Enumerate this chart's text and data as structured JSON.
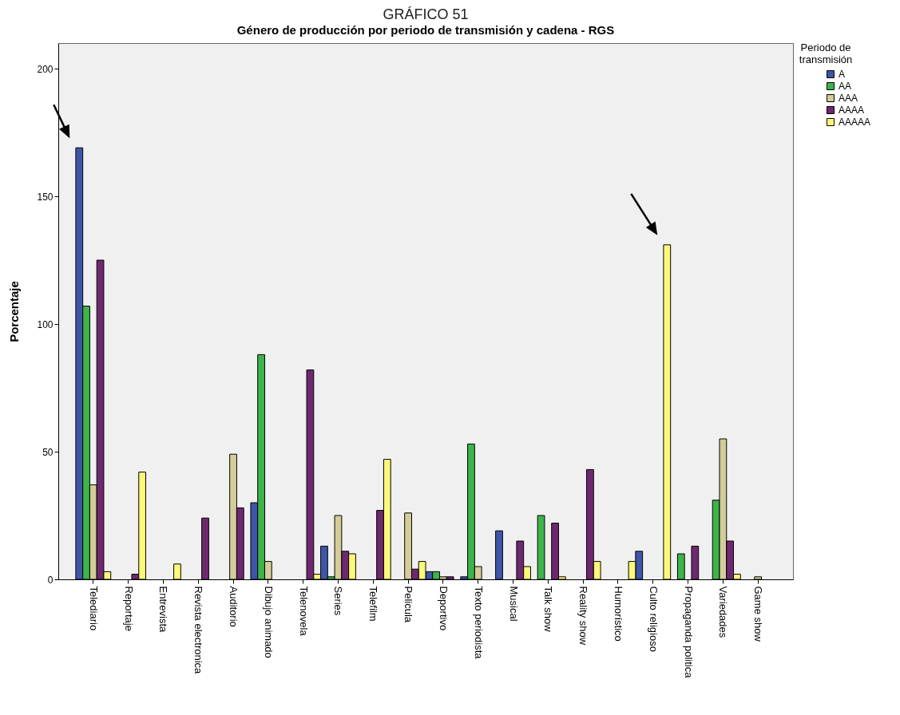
{
  "chart_data": {
    "type": "bar",
    "title": "GRÁFICO 51",
    "subtitle": "Género de producción por periodo de transmisión y cadena - RGS",
    "ylabel": "Porcentaje",
    "legend_title": "Periodo de transmisión",
    "legend": "top right",
    "categories": [
      "Telediario",
      "Reportaje",
      "Entrevista",
      "Revista electronica",
      "Auditorio",
      "Dibujo animado",
      "Telenovela",
      "Series",
      "Telefilm",
      "Pelicula",
      "Deportivo",
      "Texto periodista",
      "Musical",
      "Talk show",
      "Reality show",
      "Humorístico",
      "Culto religioso",
      "Propaganda politica",
      "Variedades",
      "Game show"
    ],
    "series": [
      {
        "name": "A",
        "color": "#3e55a8",
        "values": [
          169,
          null,
          null,
          null,
          null,
          30,
          null,
          13,
          null,
          null,
          3,
          1,
          19,
          null,
          null,
          null,
          11,
          null,
          null,
          null
        ]
      },
      {
        "name": "AA",
        "color": "#3cb44a",
        "values": [
          107,
          null,
          null,
          null,
          null,
          88,
          null,
          1,
          null,
          null,
          3,
          53,
          null,
          25,
          null,
          null,
          null,
          10,
          31,
          null
        ]
      },
      {
        "name": "AAA",
        "color": "#d4cc99",
        "values": [
          37,
          null,
          null,
          null,
          49,
          7,
          null,
          25,
          null,
          26,
          1,
          5,
          null,
          null,
          null,
          null,
          null,
          null,
          55,
          1
        ]
      },
      {
        "name": "AAAA",
        "color": "#6f2870",
        "values": [
          125,
          2,
          null,
          24,
          28,
          null,
          82,
          11,
          27,
          4,
          1,
          null,
          15,
          22,
          43,
          null,
          null,
          13,
          15,
          null
        ]
      },
      {
        "name": "AAAAA",
        "color": "#fbf87a",
        "values": [
          3,
          42,
          6,
          null,
          null,
          null,
          2,
          10,
          47,
          7,
          null,
          null,
          5,
          1,
          7,
          7,
          131,
          null,
          2,
          null
        ]
      }
    ],
    "ylim": [
      0,
      210
    ],
    "yticks": [
      0,
      50,
      100,
      150,
      200
    ],
    "grid": false
  }
}
